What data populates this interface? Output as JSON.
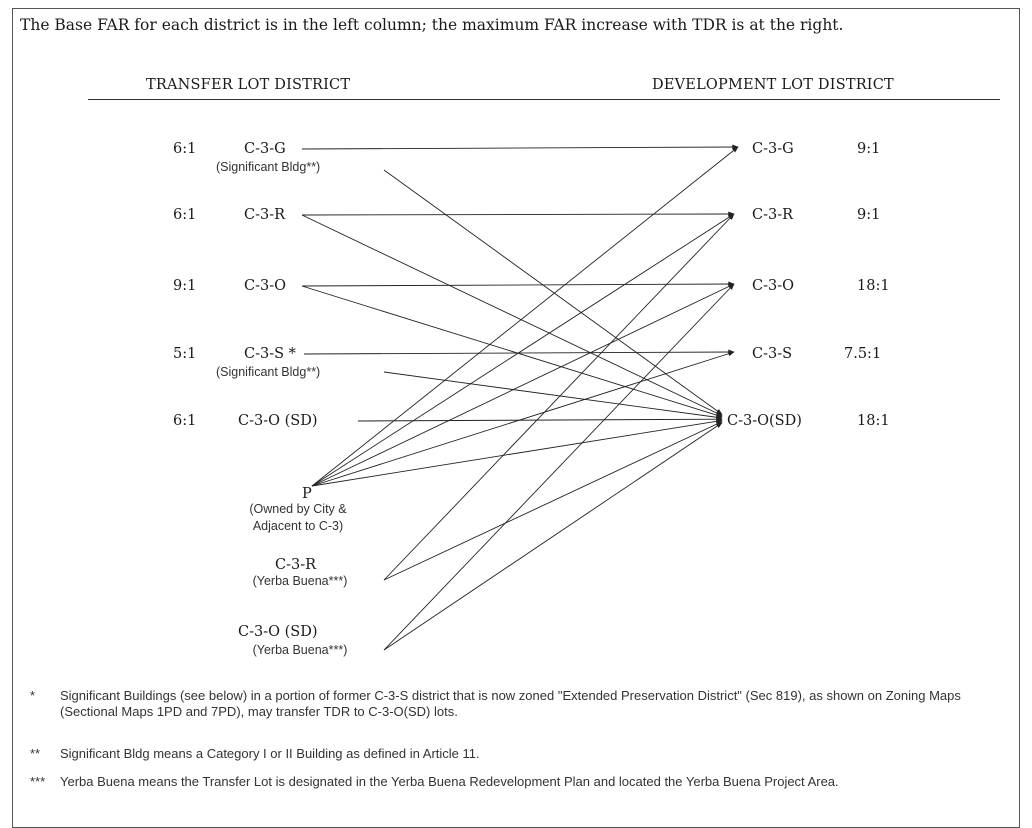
{
  "intro_text": "The Base FAR for each district is in the left column; the maximum FAR increase with TDR is at the right.",
  "headers": {
    "transfer": "TRANSFER LOT DISTRICT",
    "development": "DEVELOPMENT LOT DISTRICT"
  },
  "transfer_lots": [
    {
      "ratio": "6:1",
      "name": "C-3-G",
      "sub": "(Significant Bldg**)"
    },
    {
      "ratio": "6:1",
      "name": "C-3-R",
      "sub": ""
    },
    {
      "ratio": "9:1",
      "name": "C-3-O",
      "sub": ""
    },
    {
      "ratio": "5:1",
      "name": "C-3-S *",
      "sub": "(Significant Bldg**)"
    },
    {
      "ratio": "6:1",
      "name": "C-3-O (SD)",
      "sub": ""
    }
  ],
  "special_transfer_lots": [
    {
      "name": "P",
      "sub_lines": [
        "(Owned by City &",
        "Adjacent to C-3)"
      ]
    },
    {
      "name": "C-3-R",
      "sub_lines": [
        "(Yerba Buena***)"
      ]
    },
    {
      "name": "C-3-O (SD)",
      "sub_lines": [
        "(Yerba Buena***)"
      ]
    }
  ],
  "development_lots": [
    {
      "name": "C-3-G",
      "ratio": "9:1"
    },
    {
      "name": "C-3-R",
      "ratio": "9:1"
    },
    {
      "name": "C-3-O",
      "ratio": "18:1"
    },
    {
      "name": "C-3-S",
      "ratio": "7.5:1"
    },
    {
      "name": "C-3-O(SD)",
      "ratio": "18:1"
    }
  ],
  "transfers": [
    {
      "from": "C-3-G",
      "to": "C-3-G"
    },
    {
      "from": "C-3-G",
      "to": "C-3-O(SD)"
    },
    {
      "from": "C-3-R",
      "to": "C-3-R"
    },
    {
      "from": "C-3-R",
      "to": "C-3-O(SD)"
    },
    {
      "from": "C-3-O",
      "to": "C-3-O"
    },
    {
      "from": "C-3-O",
      "to": "C-3-O(SD)"
    },
    {
      "from": "C-3-S *",
      "to": "C-3-S"
    },
    {
      "from": "C-3-S *",
      "to": "C-3-O(SD)"
    },
    {
      "from": "C-3-O (SD)",
      "to": "C-3-O(SD)"
    },
    {
      "from": "P",
      "to": "C-3-G"
    },
    {
      "from": "P",
      "to": "C-3-R"
    },
    {
      "from": "P",
      "to": "C-3-O"
    },
    {
      "from": "P",
      "to": "C-3-S"
    },
    {
      "from": "P",
      "to": "C-3-O(SD)"
    },
    {
      "from": "C-3-R (Yerba Buena)",
      "to": "C-3-R"
    },
    {
      "from": "C-3-R (Yerba Buena)",
      "to": "C-3-O(SD)"
    },
    {
      "from": "C-3-O (SD) (Yerba Buena)",
      "to": "C-3-O"
    },
    {
      "from": "C-3-O (SD) (Yerba Buena)",
      "to": "C-3-O(SD)"
    }
  ],
  "footnotes": [
    {
      "marker": "*",
      "text": "Significant Buildings (see below) in a portion of former C-3-S district that is now zoned \"Extended Preservation District\" (Sec 819), as shown on Zoning Maps (Sectional Maps 1PD and 7PD), may transfer TDR to C-3-O(SD) lots."
    },
    {
      "marker": "**",
      "text": "Significant Bldg means a Category I or II Building as defined in Article 11."
    },
    {
      "marker": "***",
      "text": "Yerba Buena means the Transfer Lot is designated in the Yerba Buena Redevelopment Plan and located the Yerba Buena Project Area."
    }
  ]
}
